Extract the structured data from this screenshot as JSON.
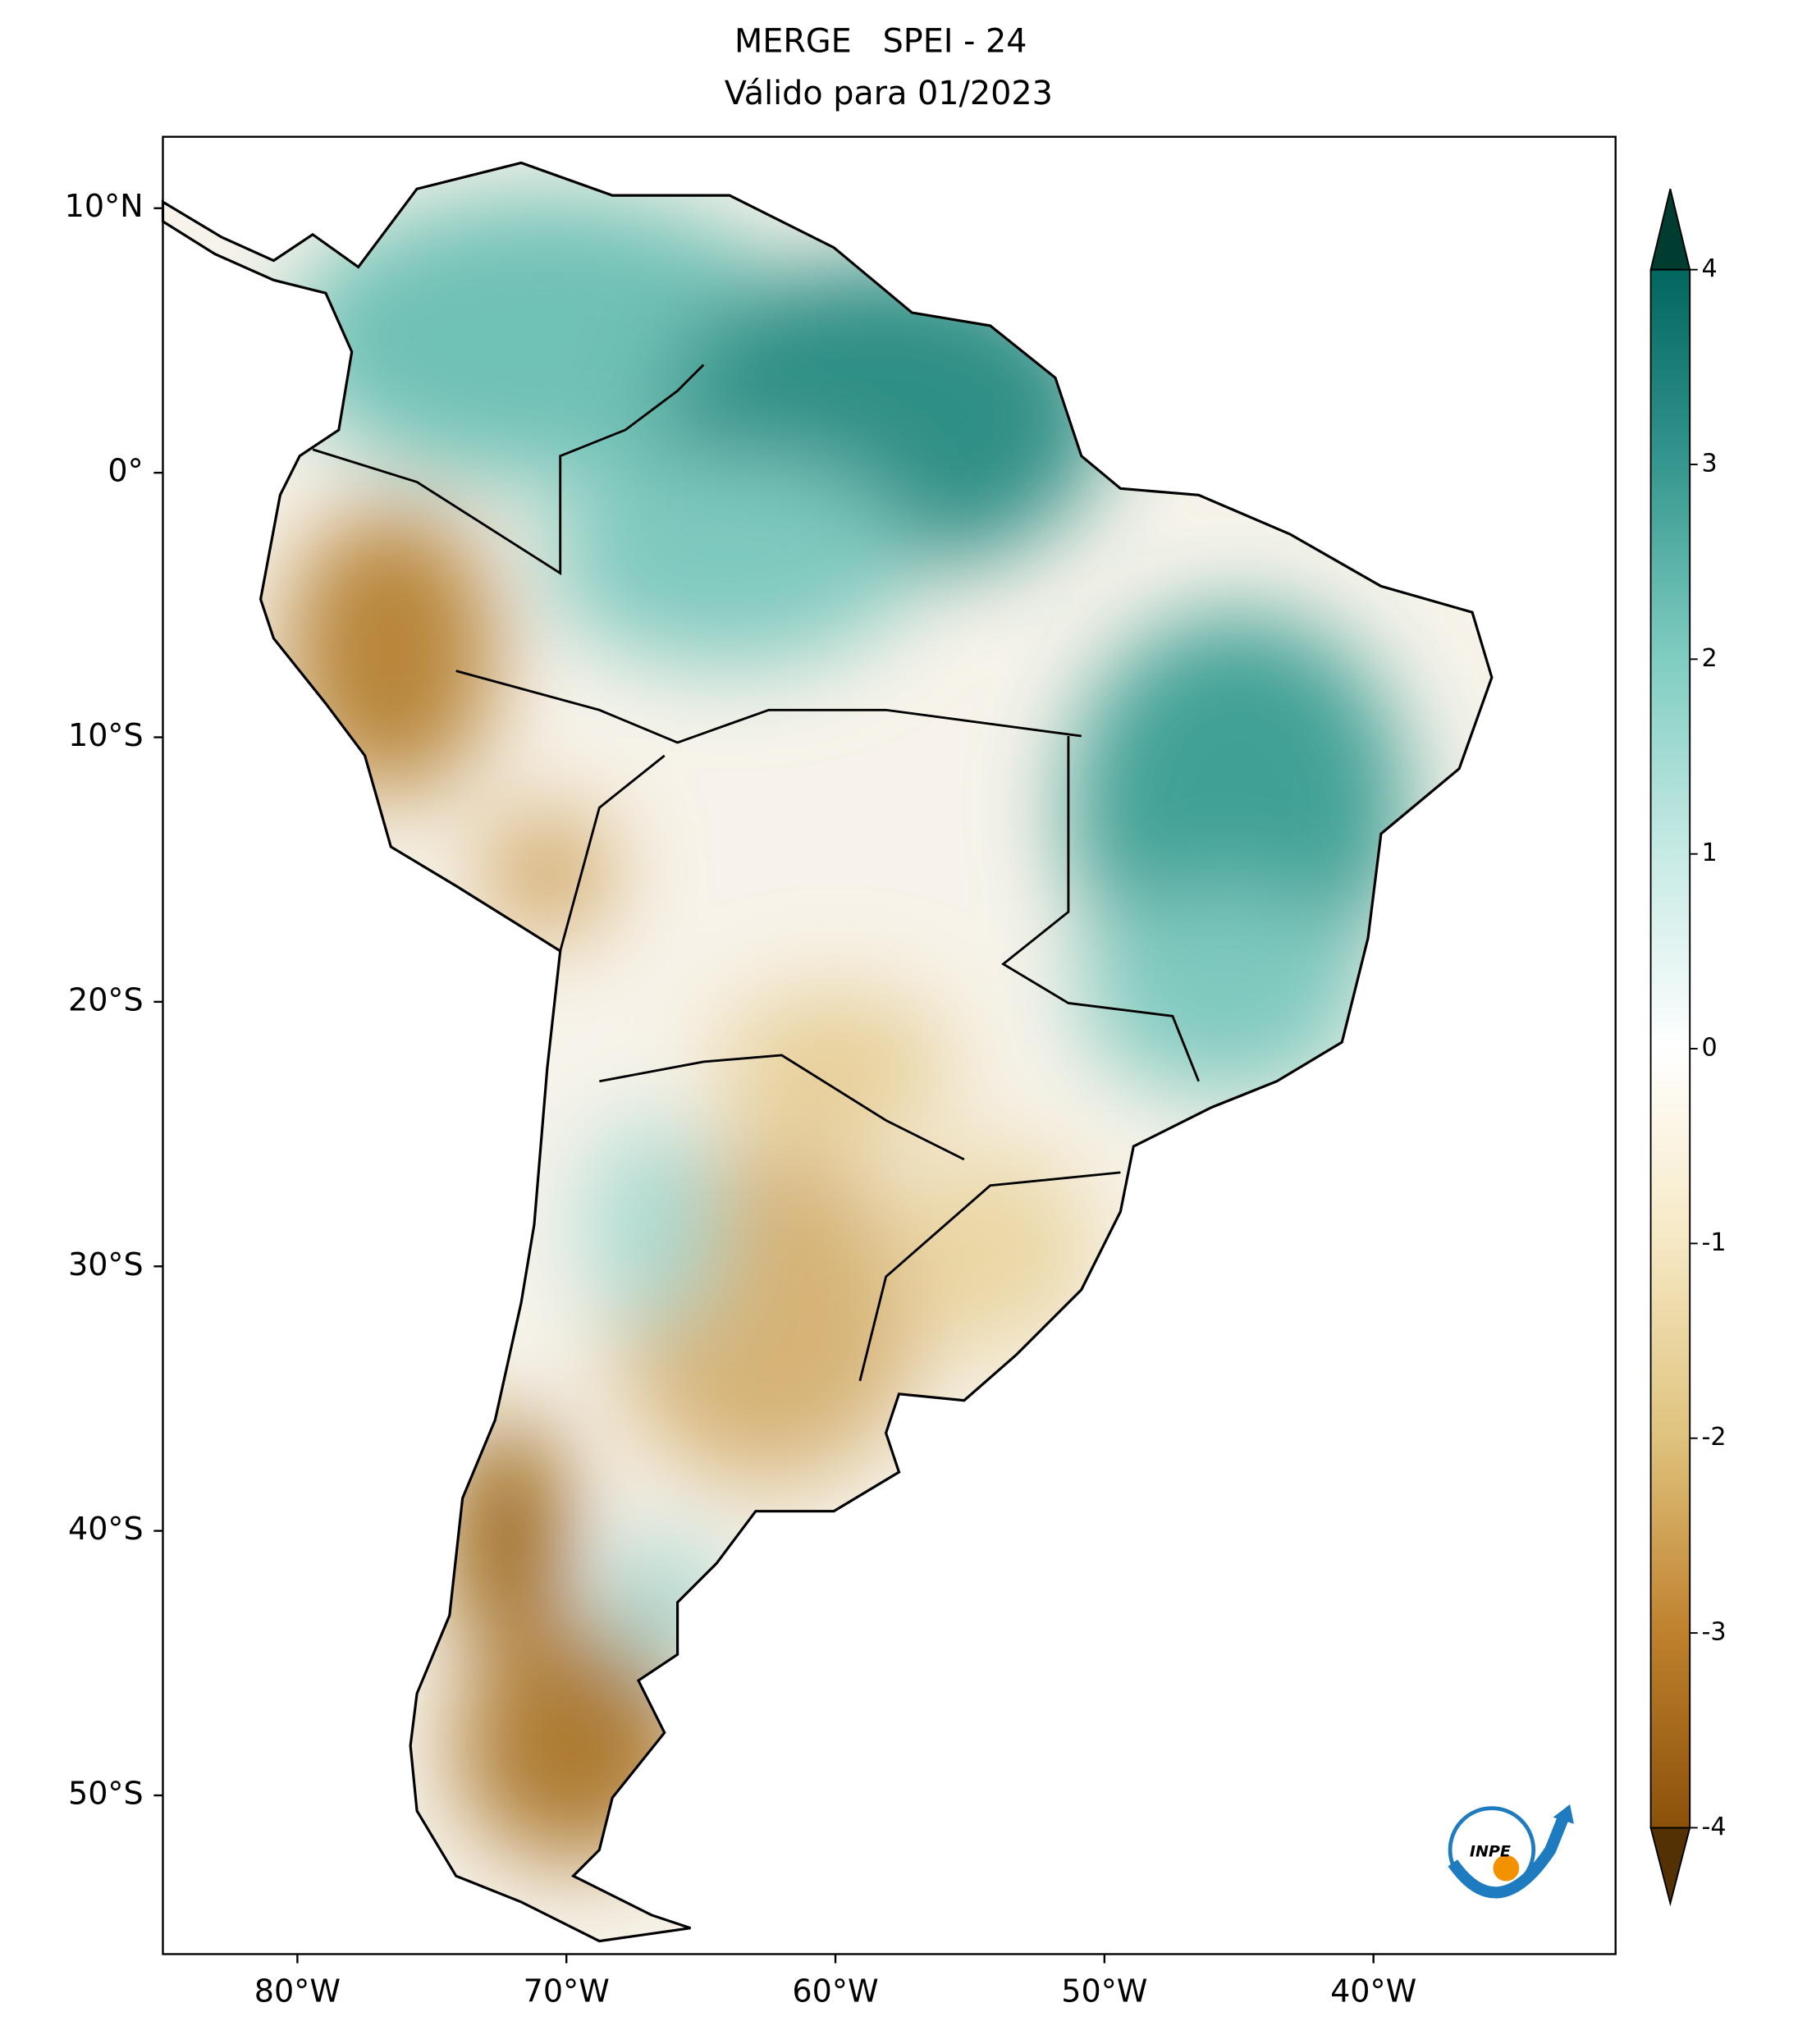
{
  "map": {
    "title": "MERGE   SPEI - 24",
    "subtitle": "Válido para 01/2023",
    "xlim": [
      -85,
      -31
    ],
    "ylim": [
      -56,
      12.7
    ],
    "xticks": [
      {
        "value": -80,
        "label": "80°W"
      },
      {
        "value": -70,
        "label": "70°W"
      },
      {
        "value": -60,
        "label": "60°W"
      },
      {
        "value": -50,
        "label": "50°W"
      },
      {
        "value": -40,
        "label": "40°W"
      }
    ],
    "yticks": [
      {
        "value": 10,
        "label": "10°N"
      },
      {
        "value": 0,
        "label": "0°"
      },
      {
        "value": -10,
        "label": "10°S"
      },
      {
        "value": -20,
        "label": "20°S"
      },
      {
        "value": -30,
        "label": "30°S"
      },
      {
        "value": -40,
        "label": "40°S"
      },
      {
        "value": -50,
        "label": "50°S"
      }
    ],
    "colorbar": {
      "lim": [
        -4,
        4
      ],
      "ticks": [
        -4,
        -3,
        -2,
        -1,
        0,
        1,
        2,
        3,
        4
      ],
      "colors": [
        "#543005",
        "#8c510a",
        "#bf812d",
        "#dfc27d",
        "#f6e8c3",
        "#ffffff",
        "#c7eae5",
        "#80cdc1",
        "#35978f",
        "#01665e",
        "#003c30"
      ]
    },
    "logo": "INPE"
  }
}
